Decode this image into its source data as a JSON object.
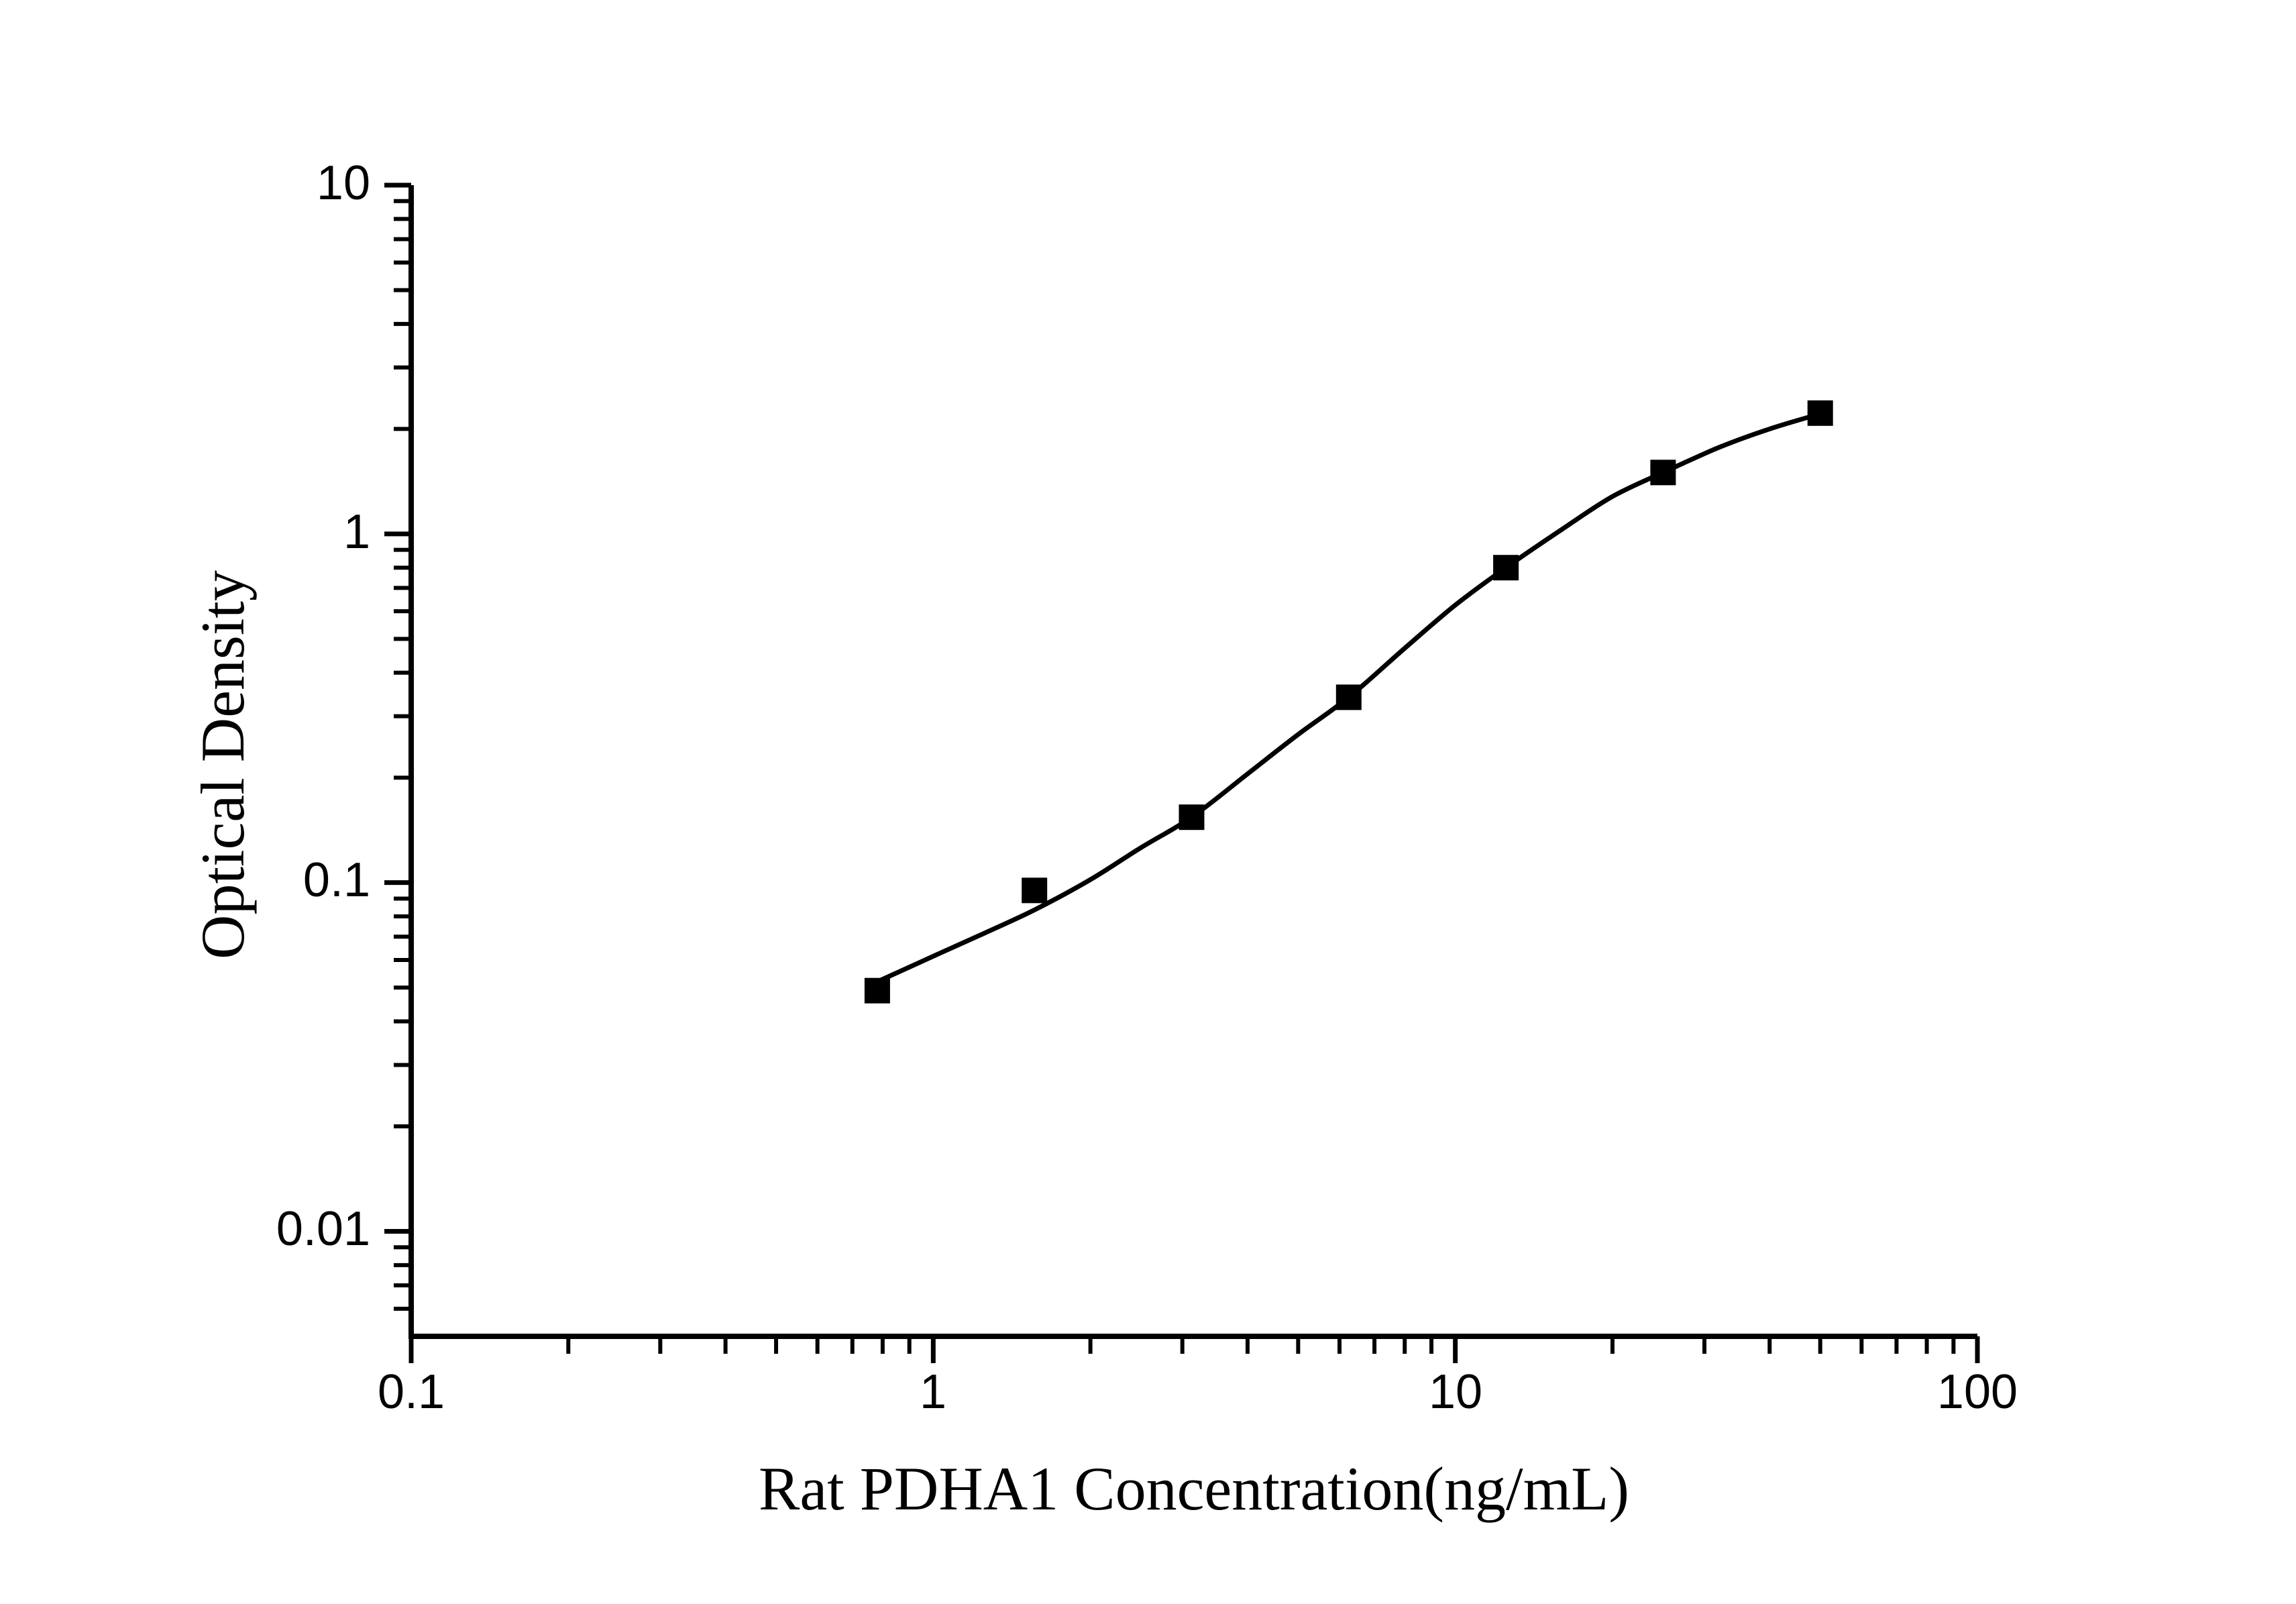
{
  "figure": {
    "background_color": "#ffffff",
    "ink_color": "#000000"
  },
  "chart_data": {
    "type": "scatter",
    "title": "",
    "xlabel": "Rat PDHA1 Concentration(ng/mL)",
    "ylabel": "Optical Density",
    "x_scale": "log",
    "y_scale": "log",
    "xlim": [
      0.1,
      100
    ],
    "ylim": [
      0.005,
      10
    ],
    "grid": "off",
    "legend": "none",
    "x_major_ticks": [
      {
        "value": 0.1,
        "label": "0.1"
      },
      {
        "value": 1,
        "label": "1"
      },
      {
        "value": 10,
        "label": "10"
      },
      {
        "value": 100,
        "label": "100"
      }
    ],
    "x_minor_ticks": [
      0.2,
      0.3,
      0.4,
      0.5,
      0.6,
      0.7,
      0.8,
      0.9,
      2,
      3,
      4,
      5,
      6,
      7,
      8,
      9,
      20,
      30,
      40,
      50,
      60,
      70,
      80,
      90
    ],
    "y_major_ticks": [
      {
        "value": 10,
        "label": "10"
      },
      {
        "value": 1,
        "label": "1"
      },
      {
        "value": 0.1,
        "label": "0.1"
      },
      {
        "value": 0.01,
        "label": "0.01"
      }
    ],
    "y_minor_ticks": [
      9,
      8,
      7,
      6,
      5,
      4,
      3,
      2,
      0.9,
      0.8,
      0.7,
      0.6,
      0.5,
      0.4,
      0.3,
      0.2,
      0.09,
      0.08,
      0.07,
      0.06,
      0.05,
      0.04,
      0.03,
      0.02,
      0.009,
      0.008,
      0.007,
      0.006
    ],
    "series": [
      {
        "name": "standard-curve-points",
        "marker": "filled-square",
        "color": "#000000",
        "points": [
          {
            "x": 0.78125,
            "y": 0.049
          },
          {
            "x": 1.5625,
            "y": 0.095
          },
          {
            "x": 3.125,
            "y": 0.154
          },
          {
            "x": 6.25,
            "y": 0.34
          },
          {
            "x": 12.5,
            "y": 0.8
          },
          {
            "x": 25,
            "y": 1.5
          },
          {
            "x": 50,
            "y": 2.22
          }
        ]
      }
    ],
    "fit_curve": {
      "name": "4pl-fit-line",
      "color": "#000000",
      "points": [
        {
          "x": 0.78125,
          "y": 0.052
        },
        {
          "x": 1.0,
          "y": 0.0615
        },
        {
          "x": 1.25,
          "y": 0.0715
        },
        {
          "x": 1.5625,
          "y": 0.0835
        },
        {
          "x": 2.0,
          "y": 0.102
        },
        {
          "x": 2.5,
          "y": 0.126
        },
        {
          "x": 3.125,
          "y": 0.154
        },
        {
          "x": 4.0,
          "y": 0.205
        },
        {
          "x": 5.0,
          "y": 0.266
        },
        {
          "x": 6.25,
          "y": 0.34
        },
        {
          "x": 8.0,
          "y": 0.47
        },
        {
          "x": 10.0,
          "y": 0.625
        },
        {
          "x": 12.5,
          "y": 0.8
        },
        {
          "x": 16.0,
          "y": 1.03
        },
        {
          "x": 20.0,
          "y": 1.28
        },
        {
          "x": 25.0,
          "y": 1.5
        },
        {
          "x": 32.0,
          "y": 1.77
        },
        {
          "x": 40.0,
          "y": 2.0
        },
        {
          "x": 50.0,
          "y": 2.21
        }
      ]
    }
  }
}
